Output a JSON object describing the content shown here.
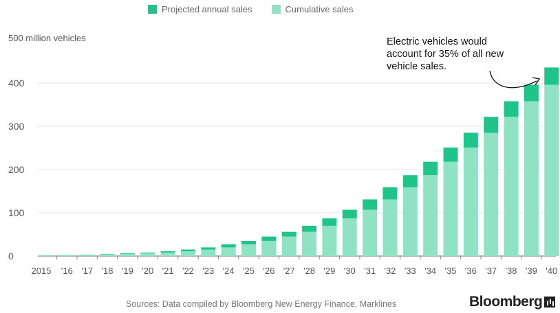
{
  "legend": {
    "annual_label": "Projected annual sales",
    "cumulative_label": "Cumulative sales"
  },
  "colors": {
    "annual": "#1fc48a",
    "cumulative": "#8fe3c4",
    "axis": "#888888",
    "grid": "#e6e6e6"
  },
  "axis_unit_label": "500 million vehicles",
  "annotation_text": "Electric vehicles would account for 35% of all new vehicle sales.",
  "source_text": "Sources: Data compiled by Bloomberg New Energy Finance, Marklines",
  "brand_text": "Bloomberg",
  "chart_data": {
    "type": "bar",
    "stacked": true,
    "categories": [
      "2015",
      "'16",
      "'17",
      "'18",
      "'19",
      "'20",
      "'21",
      "'22",
      "'23",
      "'24",
      "'25",
      "'26",
      "'27",
      "'28",
      "'29",
      "'30",
      "'31",
      "'32",
      "'33",
      "'34",
      "'35",
      "'36",
      "'37",
      "'38",
      "'39",
      "'40"
    ],
    "series": [
      {
        "name": "Cumulative sales",
        "values": [
          1,
          1.5,
          2,
          3,
          4.5,
          6,
          8,
          11,
          15,
          20,
          27,
          35,
          45,
          56,
          70,
          87,
          107,
          131,
          159,
          187,
          218,
          251,
          285,
          322,
          358,
          396
        ]
      },
      {
        "name": "Projected annual sales",
        "values": [
          0.5,
          0.7,
          1,
          1.3,
          1.6,
          2,
          3,
          4,
          5,
          7,
          8,
          10,
          11,
          14,
          17,
          20,
          24,
          28,
          28,
          31,
          33,
          34,
          37,
          36,
          38,
          40
        ]
      }
    ],
    "ylim": [
      0,
      500
    ],
    "yticks": [
      0,
      100,
      200,
      300,
      400
    ],
    "ytick_labels": [
      "0",
      "100",
      "200",
      "300",
      "400"
    ],
    "grid": true,
    "legend_position": "top",
    "annotation": "Electric vehicles would account for 35% of all new vehicle sales."
  }
}
